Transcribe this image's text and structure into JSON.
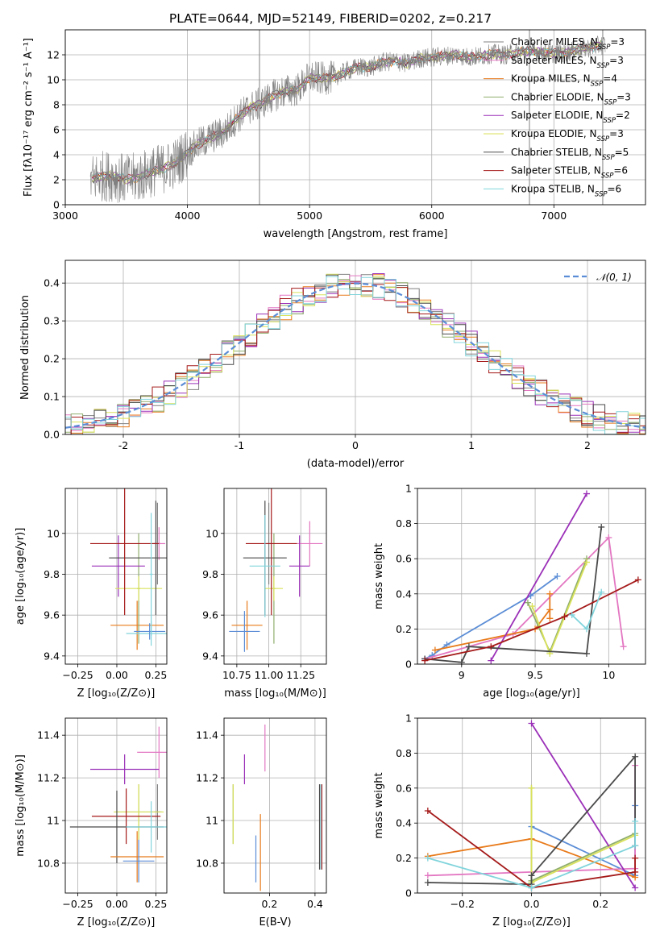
{
  "colors": {
    "Chabrier MILES": "#808080",
    "Salpeter MILES": "#e377c2",
    "Kroupa MILES": "#e87a1a",
    "Chabrier ELODIE": "#8fae6c",
    "Salpeter ELODIE": "#9b30b8",
    "Kroupa ELODIE": "#d9e25a",
    "Chabrier STELIB": "#4a4a4a",
    "Salpeter STELIB": "#a51a1a",
    "Kroupa STELIB": "#80d4dc",
    "gauss": "#5b8dd6"
  },
  "chart_data": [
    {
      "id": "spectrum",
      "type": "line",
      "title": "PLATE=0644, MJD=52149, FIBERID=0202, z=0.217",
      "xlabel": "wavelength [Angstrom, rest frame]",
      "ylabel": "Flux [fλ10⁻¹⁷ erg cm⁻² s⁻¹ A⁻¹]",
      "xlim": [
        3000,
        7750
      ],
      "ylim": [
        0,
        14
      ],
      "xticks": [
        3000,
        4000,
        5000,
        6000,
        7000
      ],
      "yticks": [
        0,
        2,
        4,
        6,
        8,
        10,
        12
      ],
      "grid": true,
      "legend_position": "right",
      "legend": [
        {
          "name": "Chabrier MILES",
          "suffix": "=3"
        },
        {
          "name": "Salpeter MILES",
          "suffix": "=3"
        },
        {
          "name": "Kroupa MILES",
          "suffix": "=4"
        },
        {
          "name": "Chabrier ELODIE",
          "suffix": "=3"
        },
        {
          "name": "Salpeter ELODIE",
          "suffix": "=2"
        },
        {
          "name": "Kroupa ELODIE",
          "suffix": "=3"
        },
        {
          "name": "Chabrier STELIB",
          "suffix": "=5"
        },
        {
          "name": "Salpeter STELIB",
          "suffix": "=6"
        },
        {
          "name": "Kroupa STELIB",
          "suffix": "=6"
        }
      ],
      "legend_n_label": "N",
      "legend_n_sub": "SSP",
      "continuum": [
        [
          3200,
          2.0
        ],
        [
          3300,
          2.3
        ],
        [
          3400,
          2.3
        ],
        [
          3500,
          2.0
        ],
        [
          3600,
          2.2
        ],
        [
          3700,
          2.6
        ],
        [
          3800,
          2.9
        ],
        [
          3900,
          3.3
        ],
        [
          4000,
          4.2
        ],
        [
          4100,
          4.9
        ],
        [
          4200,
          5.4
        ],
        [
          4300,
          5.8
        ],
        [
          4400,
          6.9
        ],
        [
          4500,
          7.7
        ],
        [
          4600,
          8.1
        ],
        [
          4700,
          8.7
        ],
        [
          4800,
          9.1
        ],
        [
          4900,
          9.2
        ],
        [
          5000,
          10.2
        ],
        [
          5100,
          10.1
        ],
        [
          5200,
          10.2
        ],
        [
          5300,
          10.7
        ],
        [
          5400,
          11.0
        ],
        [
          5500,
          11.0
        ],
        [
          5600,
          11.4
        ],
        [
          5700,
          11.5
        ],
        [
          5800,
          11.3
        ],
        [
          5900,
          11.7
        ],
        [
          6000,
          11.8
        ],
        [
          6100,
          11.9
        ],
        [
          6200,
          12.0
        ],
        [
          6300,
          11.8
        ],
        [
          6400,
          11.9
        ],
        [
          6500,
          12.1
        ],
        [
          6600,
          12.0
        ],
        [
          6700,
          12.2
        ],
        [
          6800,
          12.3
        ],
        [
          6900,
          12.2
        ],
        [
          7000,
          12.1
        ],
        [
          7100,
          12.2
        ],
        [
          7200,
          12.4
        ],
        [
          7300,
          12.6
        ],
        [
          7400,
          12.8
        ]
      ],
      "sharp_lines": [
        4590,
        6800,
        7400
      ]
    },
    {
      "id": "residuals",
      "type": "histogram",
      "xlabel": "(data-model)/error",
      "ylabel": "Normed distribution",
      "xlim": [
        -2.5,
        2.5
      ],
      "ylim": [
        0,
        0.46
      ],
      "xticks": [
        -2,
        -1,
        0,
        1,
        2
      ],
      "yticks": [
        0.0,
        0.1,
        0.2,
        0.3,
        0.4
      ],
      "grid": true,
      "legend_position": "upper right",
      "legend": "𝒩(0, 1)",
      "bin_width": 0.1,
      "gaussian": {
        "mu": 0,
        "sigma": 1
      }
    },
    {
      "id": "age-vs-Z",
      "type": "errorbar",
      "xlabel": "Z [log₁₀(Z/Z⊙)]",
      "ylabel": "age  [log₁₀(age/yr)]",
      "xlim": [
        -0.33,
        0.32
      ],
      "ylim": [
        9.36,
        10.22
      ],
      "xticks": [
        -0.25,
        0.0,
        0.25
      ],
      "xticklabels": [
        "−0.25",
        "0.00",
        "0.25"
      ],
      "yticks": [
        9.4,
        9.6,
        9.8,
        10.0
      ],
      "grid": true,
      "points": [
        {
          "m": "Chabrier MILES",
          "x": 0.26,
          "xe": 0.02,
          "y": 9.95,
          "ye": 0.2
        },
        {
          "m": "Salpeter MILES",
          "x": 0.27,
          "xe": 0.04,
          "y": 9.95,
          "ye": 0.08
        },
        {
          "m": "Kroupa MILES",
          "x": 0.13,
          "xe": 0.17,
          "y": 9.55,
          "ye": 0.12
        },
        {
          "m": "Chabrier ELODIE",
          "x": 0.14,
          "xe": 0.01,
          "y": 9.73,
          "ye": 0.27
        },
        {
          "m": "Salpeter ELODIE",
          "x": 0.01,
          "xe": 0.17,
          "y": 9.84,
          "ye": 0.15
        },
        {
          "m": "Kroupa ELODIE",
          "x": 0.14,
          "xe": 0.15,
          "y": 9.73,
          "ye": 0.06
        },
        {
          "m": "Chabrier STELIB",
          "x": 0.25,
          "xe": 0.3,
          "y": 9.88,
          "ye": 0.28
        },
        {
          "m": "Salpeter STELIB",
          "x": 0.05,
          "xe": 0.22,
          "y": 9.95,
          "ye": 0.35
        },
        {
          "m": "Kroupa STELIB",
          "x": 0.22,
          "xe": 0.16,
          "y": 9.51,
          "ye": 0.06
        },
        {
          "m": "gauss",
          "x": 0.21,
          "xe": 0.1,
          "y": 9.52,
          "ye": 0.04
        },
        {
          "m": "Kroupa STELIB",
          "x": 0.22,
          "xe": 0.01,
          "y": 9.8,
          "ye": 0.3
        }
      ]
    },
    {
      "id": "age-vs-mass",
      "type": "errorbar",
      "xlabel": "mass [log₁₀(M/M⊙)]",
      "xlim": [
        10.65,
        11.45
      ],
      "ylim": [
        9.36,
        10.22
      ],
      "xticks": [
        10.75,
        11.0,
        11.25
      ],
      "xticklabels": [
        "10.75",
        "11.00",
        "11.25"
      ],
      "yticks": [
        9.4,
        9.6,
        9.8,
        10.0
      ],
      "grid": true,
      "points": [
        {
          "m": "Chabrier MILES",
          "x": 11.0,
          "xe": 0.02,
          "y": 9.95,
          "ye": 0.2
        },
        {
          "m": "Salpeter MILES",
          "x": 11.32,
          "xe": 0.1,
          "y": 9.95,
          "ye": 0.11
        },
        {
          "m": "Kroupa MILES",
          "x": 10.83,
          "xe": 0.12,
          "y": 9.55,
          "ye": 0.12
        },
        {
          "m": "Chabrier ELODIE",
          "x": 11.04,
          "xe": 0.01,
          "y": 9.73,
          "ye": 0.27
        },
        {
          "m": "Salpeter ELODIE",
          "x": 11.24,
          "xe": 0.08,
          "y": 9.84,
          "ye": 0.15
        },
        {
          "m": "Kroupa ELODIE",
          "x": 11.04,
          "xe": 0.07,
          "y": 9.73,
          "ye": 0.06
        },
        {
          "m": "Chabrier STELIB",
          "x": 10.97,
          "xe": 0.17,
          "y": 9.88,
          "ye": 0.28
        },
        {
          "m": "Salpeter STELIB",
          "x": 11.02,
          "xe": 0.2,
          "y": 9.95,
          "ye": 0.35
        },
        {
          "m": "Kroupa STELIB",
          "x": 10.97,
          "xe": 0.12,
          "y": 9.84,
          "ye": 0.25
        },
        {
          "m": "gauss",
          "x": 10.81,
          "xe": 0.12,
          "y": 9.52,
          "ye": 0.1
        }
      ]
    },
    {
      "id": "weight-vs-age",
      "type": "line",
      "xlabel": "age  [log₁₀(age/yr)]",
      "ylabel": "mass weight",
      "xlim": [
        8.7,
        10.25
      ],
      "ylim": [
        0,
        1.0
      ],
      "xticks": [
        9.0,
        9.5,
        10.0
      ],
      "yticks": [
        0.0,
        0.2,
        0.4,
        0.6,
        0.8,
        1.0
      ],
      "grid": true,
      "series": [
        {
          "m": "gauss",
          "points": [
            [
              8.75,
              0.03
            ],
            [
              8.8,
              0.05
            ],
            [
              8.9,
              0.11
            ],
            [
              9.47,
              0.39
            ],
            [
              9.65,
              0.5
            ]
          ]
        },
        {
          "m": "Salpeter MILES",
          "points": [
            [
              8.75,
              0.03
            ],
            [
              9.35,
              0.17
            ],
            [
              10.0,
              0.72
            ],
            [
              10.1,
              0.1
            ]
          ]
        },
        {
          "m": "Kroupa MILES",
          "points": [
            [
              8.82,
              0.08
            ],
            [
              9.5,
              0.2
            ],
            [
              9.6,
              0.31
            ],
            [
              9.6,
              0.4
            ],
            [
              9.6,
              0.26
            ]
          ]
        },
        {
          "m": "Chabrier ELODIE",
          "points": [
            [
              9.45,
              0.35
            ],
            [
              9.6,
              0.07
            ],
            [
              9.85,
              0.6
            ]
          ]
        },
        {
          "m": "Salpeter ELODIE",
          "points": [
            [
              9.2,
              0.02
            ],
            [
              9.85,
              0.97
            ]
          ]
        },
        {
          "m": "Kroupa ELODIE",
          "points": [
            [
              9.48,
              0.33
            ],
            [
              9.6,
              0.06
            ],
            [
              9.85,
              0.58
            ]
          ]
        },
        {
          "m": "Chabrier STELIB",
          "points": [
            [
              8.75,
              0.03
            ],
            [
              9.0,
              0.01
            ],
            [
              9.05,
              0.1
            ],
            [
              9.85,
              0.06
            ],
            [
              9.95,
              0.78
            ]
          ]
        },
        {
          "m": "Salpeter STELIB",
          "points": [
            [
              8.75,
              0.02
            ],
            [
              9.2,
              0.1
            ],
            [
              9.7,
              0.27
            ],
            [
              10.2,
              0.48
            ]
          ]
        },
        {
          "m": "Kroupa STELIB",
          "points": [
            [
              9.75,
              0.28
            ],
            [
              9.85,
              0.2
            ],
            [
              9.95,
              0.41
            ]
          ]
        }
      ]
    },
    {
      "id": "mass-vs-Z",
      "type": "errorbar",
      "xlabel": "Z [log₁₀(Z/Z⊙)]",
      "ylabel": "mass [log₁₀(M/M⊙)]",
      "xlim": [
        -0.33,
        0.32
      ],
      "ylim": [
        10.66,
        11.48
      ],
      "xticks": [
        -0.25,
        0.0,
        0.25
      ],
      "xticklabels": [
        "−0.25",
        "0.00",
        "0.25"
      ],
      "yticks": [
        10.8,
        11.0,
        11.2,
        11.4
      ],
      "grid": true,
      "points": [
        {
          "m": "Salpeter MILES",
          "x": 0.27,
          "xe": 0.14,
          "y": 11.32,
          "ye": 0.12
        },
        {
          "m": "Salpeter ELODIE",
          "x": 0.05,
          "xe": 0.22,
          "y": 11.24,
          "ye": 0.07
        },
        {
          "m": "Chabrier MILES",
          "x": 0.26,
          "xe": 0.02,
          "y": 11.04,
          "ye": 0.13
        },
        {
          "m": "Chabrier ELODIE",
          "x": 0.14,
          "xe": 0.15,
          "y": 11.04,
          "ye": 0.13
        },
        {
          "m": "Kroupa ELODIE",
          "x": 0.14,
          "xe": 0.16,
          "y": 11.04,
          "ye": 0.13
        },
        {
          "m": "Salpeter STELIB",
          "x": 0.06,
          "xe": 0.22,
          "y": 11.02,
          "ye": 0.13
        },
        {
          "m": "Chabrier STELIB",
          "x": 0.0,
          "xe": 0.3,
          "y": 10.97,
          "ye": 0.17
        },
        {
          "m": "Kroupa STELIB",
          "x": 0.22,
          "xe": 0.16,
          "y": 10.97,
          "ye": 0.12
        },
        {
          "m": "Kroupa MILES",
          "x": 0.13,
          "xe": 0.17,
          "y": 10.83,
          "ye": 0.12
        },
        {
          "m": "gauss",
          "x": 0.14,
          "xe": 0.1,
          "y": 10.81,
          "ye": 0.1
        }
      ]
    },
    {
      "id": "mass-vs-ebv",
      "type": "errorbar",
      "xlabel": "E(B-V)",
      "xlim": [
        0.0,
        0.45
      ],
      "ylim": [
        10.66,
        11.48
      ],
      "xticks": [
        0.2,
        0.4
      ],
      "xticklabels": [
        "0.2",
        "0.4"
      ],
      "yticks": [
        10.8,
        11.0,
        11.2,
        11.4
      ],
      "grid": true,
      "points": [
        {
          "m": "Chabrier ELODIE",
          "x": 0.04,
          "xe": 0.0,
          "y": 11.03,
          "ye": 0.14
        },
        {
          "m": "Kroupa ELODIE",
          "x": 0.04,
          "xe": 0.0,
          "y": 11.03,
          "ye": 0.14
        },
        {
          "m": "gauss",
          "x": 0.14,
          "xe": 0.0,
          "y": 10.82,
          "ye": 0.11
        },
        {
          "m": "Kroupa MILES",
          "x": 0.16,
          "xe": 0.0,
          "y": 10.85,
          "ye": 0.18
        },
        {
          "m": "Salpeter ELODIE",
          "x": 0.09,
          "xe": 0.0,
          "y": 11.24,
          "ye": 0.07
        },
        {
          "m": "Salpeter MILES",
          "x": 0.18,
          "xe": 0.0,
          "y": 11.34,
          "ye": 0.11
        },
        {
          "m": "Chabrier STELIB",
          "x": 0.42,
          "xe": 0.0,
          "y": 10.97,
          "ye": 0.2
        },
        {
          "m": "Kroupa STELIB",
          "x": 0.425,
          "xe": 0.0,
          "y": 10.97,
          "ye": 0.2
        },
        {
          "m": "Salpeter STELIB",
          "x": 0.43,
          "xe": 0.0,
          "y": 10.97,
          "ye": 0.2
        }
      ]
    },
    {
      "id": "weight-vs-Z",
      "type": "line",
      "xlabel": "Z [log₁₀(Z/Z⊙)]",
      "ylabel": "mass weight",
      "xlim": [
        -0.33,
        0.33
      ],
      "ylim": [
        0,
        1.0
      ],
      "xticks": [
        -0.2,
        0.0,
        0.2
      ],
      "xticklabels": [
        "−0.2",
        "0.0",
        "0.2"
      ],
      "yticks": [
        0.0,
        0.2,
        0.4,
        0.6,
        0.8,
        1.0
      ],
      "grid": true,
      "series": [
        {
          "m": "gauss",
          "points": [
            [
              0.0,
              0.38
            ],
            [
              0.3,
              0.1
            ],
            [
              0.3,
              0.5
            ]
          ]
        },
        {
          "m": "Kroupa MILES",
          "points": [
            [
              -0.3,
              0.21
            ],
            [
              0.0,
              0.31
            ],
            [
              0.3,
              0.09
            ],
            [
              0.3,
              0.2
            ]
          ]
        },
        {
          "m": "Salpeter MILES",
          "points": [
            [
              -0.3,
              0.1
            ],
            [
              0.3,
              0.14
            ],
            [
              0.3,
              0.73
            ]
          ]
        },
        {
          "m": "Chabrier ELODIE",
          "points": [
            [
              0.0,
              0.6
            ],
            [
              0.0,
              0.07
            ],
            [
              0.3,
              0.34
            ]
          ]
        },
        {
          "m": "Salpeter ELODIE",
          "points": [
            [
              0.0,
              0.97
            ],
            [
              0.3,
              0.03
            ]
          ]
        },
        {
          "m": "Kroupa ELODIE",
          "points": [
            [
              0.0,
              0.6
            ],
            [
              0.0,
              0.06
            ],
            [
              0.3,
              0.33
            ]
          ]
        },
        {
          "m": "Chabrier STELIB",
          "points": [
            [
              -0.3,
              0.06
            ],
            [
              0.0,
              0.05
            ],
            [
              0.0,
              0.1
            ],
            [
              0.3,
              0.78
            ],
            [
              0.3,
              0.27
            ]
          ]
        },
        {
          "m": "Salpeter STELIB",
          "points": [
            [
              -0.3,
              0.47
            ],
            [
              0.0,
              0.03
            ],
            [
              0.3,
              0.12
            ],
            [
              0.3,
              0.2
            ]
          ]
        },
        {
          "m": "Kroupa STELIB",
          "points": [
            [
              -0.3,
              0.2
            ],
            [
              0.0,
              0.03
            ],
            [
              0.3,
              0.27
            ],
            [
              0.3,
              0.41
            ]
          ]
        }
      ]
    }
  ]
}
